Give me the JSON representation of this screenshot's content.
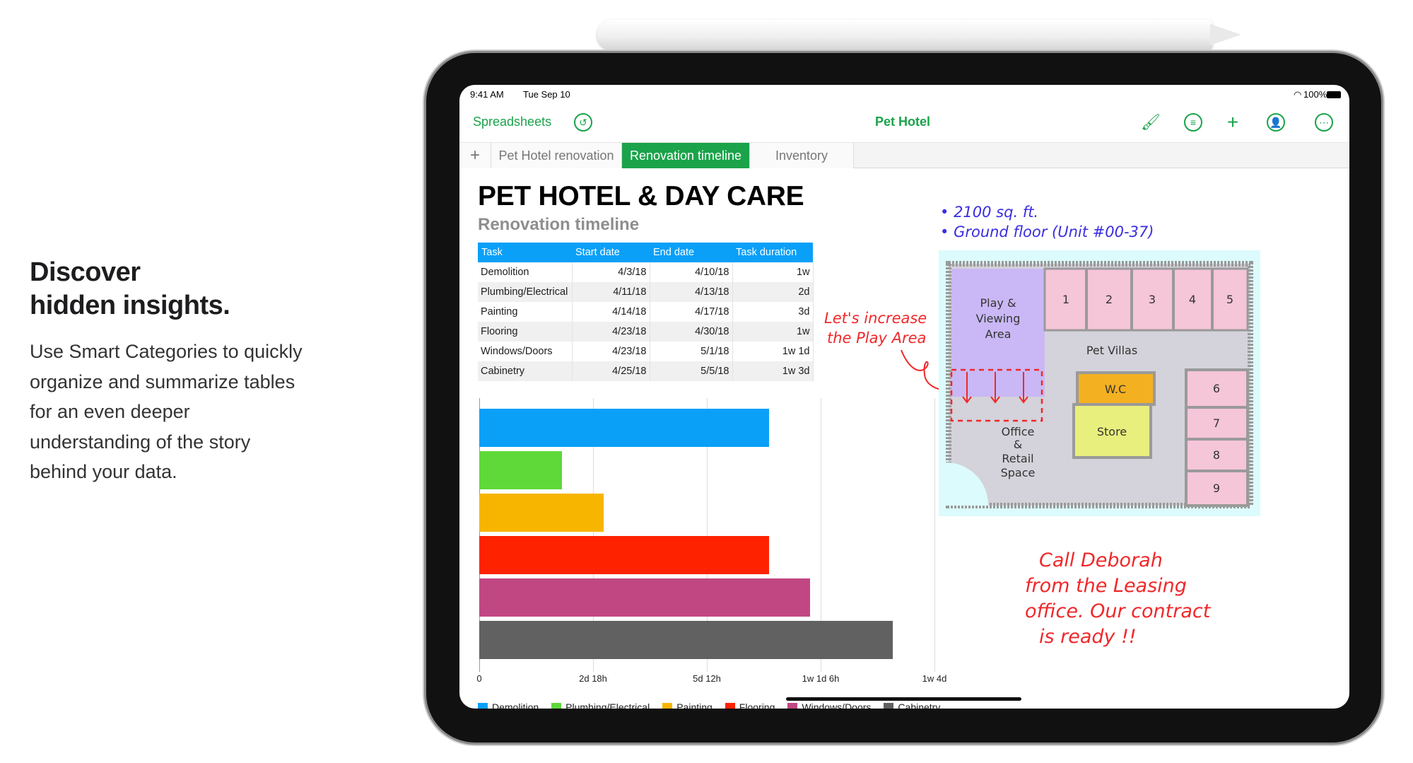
{
  "hero": {
    "title_line1": "Discover",
    "title_line2": "hidden insights.",
    "body": "Use Smart Categories to quickly organize and summarize tables for an even deeper understanding of the story behind your data."
  },
  "status": {
    "time": "9:41 AM",
    "date": "Tue Sep 10",
    "battery": "100%"
  },
  "toolbar": {
    "back_label": "Spreadsheets",
    "doc_title": "Pet Hotel",
    "icons": [
      "undo-icon",
      "format-brush-icon",
      "organize-icon",
      "add-icon",
      "collaborate-icon",
      "more-icon"
    ]
  },
  "tabs": [
    {
      "label": "+"
    },
    {
      "label": "Pet Hotel renovation"
    },
    {
      "label": "Renovation timeline",
      "active": true
    },
    {
      "label": "Inventory"
    }
  ],
  "sheet": {
    "title": "PET HOTEL & DAY CARE",
    "subtitle": "Renovation timeline"
  },
  "table": {
    "headers": [
      "Task",
      "Start date",
      "End date",
      "Task duration"
    ],
    "rows": [
      [
        "Demolition",
        "4/3/18",
        "4/10/18",
        "1w"
      ],
      [
        "Plumbing/Electrical",
        "4/11/18",
        "4/13/18",
        "2d"
      ],
      [
        "Painting",
        "4/14/18",
        "4/17/18",
        "3d"
      ],
      [
        "Flooring",
        "4/23/18",
        "4/30/18",
        "1w"
      ],
      [
        "Windows/Doors",
        "4/23/18",
        "5/1/18",
        "1w 1d"
      ],
      [
        "Cabinetry",
        "4/25/18",
        "5/5/18",
        "1w 3d"
      ]
    ]
  },
  "chart_data": {
    "type": "bar",
    "orientation": "horizontal",
    "categories": [
      "Demolition",
      "Plumbing/Electrical",
      "Painting",
      "Flooring",
      "Windows/Doors",
      "Cabinetry"
    ],
    "values_days": [
      7,
      2,
      3,
      7,
      8,
      10
    ],
    "colors": [
      "#0aa0f8",
      "#5fd93a",
      "#f7b500",
      "#ff2200",
      "#c14783",
      "#616161"
    ],
    "xlim_days": [
      0,
      11
    ],
    "ticks": [
      "0",
      "2d 18h",
      "5d 12h",
      "1w 1d 6h",
      "1w 4d"
    ],
    "grid": true,
    "legend": "bottom"
  },
  "notes": {
    "blue1": "2100 sq. ft.",
    "blue2": "Ground floor (Unit #00-37)",
    "red1": "Let's increase",
    "red2": "the Play Area",
    "call": [
      "Call Deborah",
      "from the Leasing",
      "office. Our contract",
      "is ready !!"
    ]
  },
  "floorplan": {
    "play": [
      "Play &",
      "Viewing",
      "Area"
    ],
    "villas": "Pet Villas",
    "wc": "W.C",
    "store": "Store",
    "office": [
      "Office",
      "&",
      "Retail",
      "Space"
    ],
    "rooms": [
      "1",
      "2",
      "3",
      "4",
      "5",
      "6",
      "7",
      "8",
      "9"
    ]
  }
}
